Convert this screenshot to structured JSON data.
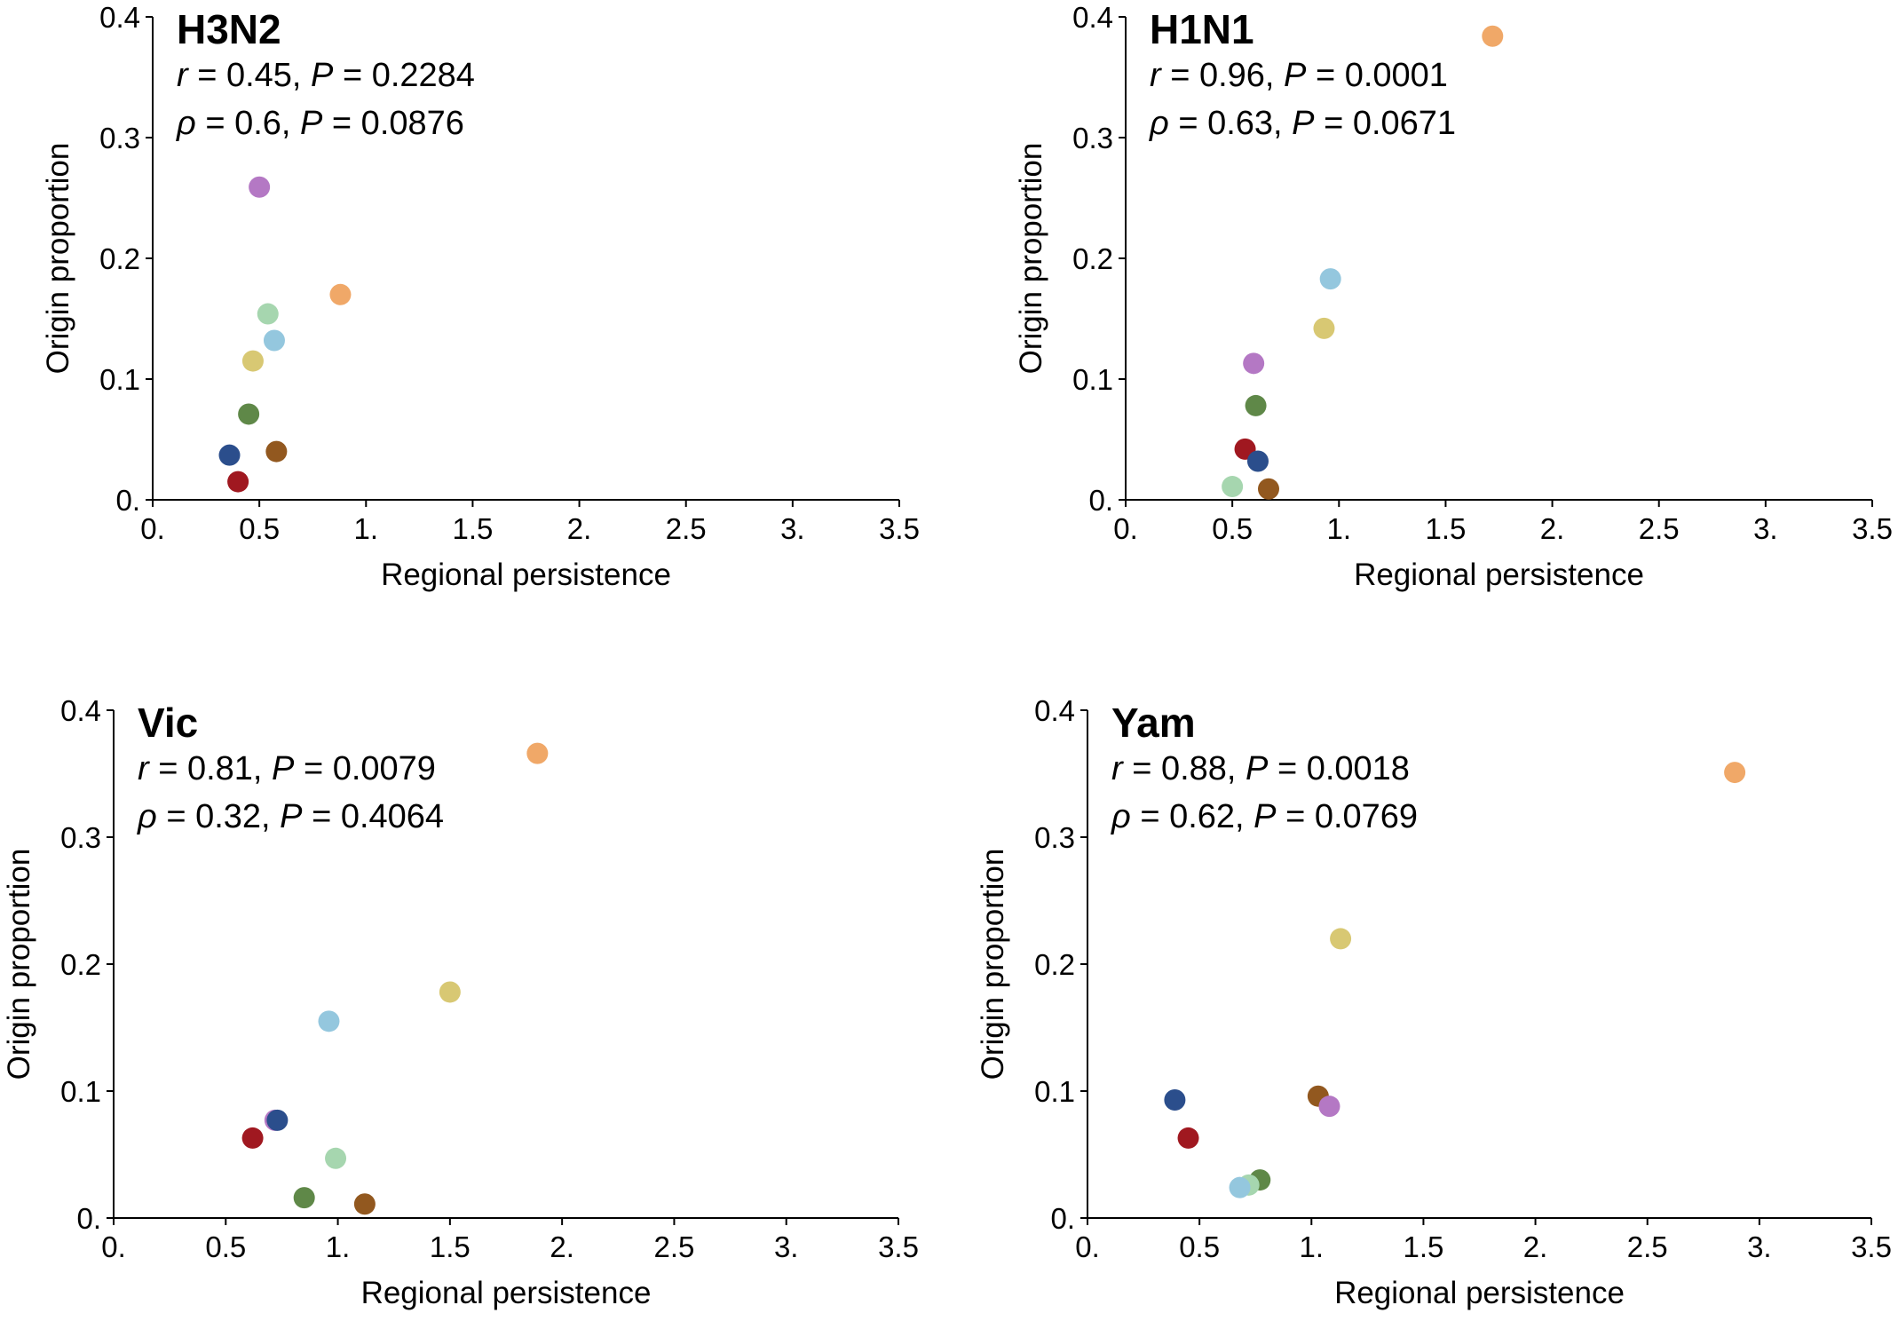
{
  "colors": {
    "orange": "#F0A868",
    "lightblue": "#94C7DE",
    "yellow": "#D8C873",
    "purple": "#B478C4",
    "darkgreen": "#5F8848",
    "darkblue": "#2B4E8C",
    "darkred": "#A01820",
    "brown": "#92581F",
    "lightgreen": "#A6D6AF"
  },
  "chart_data": [
    {
      "type": "scatter",
      "title": "H3N2",
      "stat_lines": [
        {
          "sym": "r",
          "eq": " = 0.45, ",
          "p": "P",
          "val": " = 0.2284"
        },
        {
          "sym": "ρ",
          "eq": " = 0.6, ",
          "p": "P",
          "val": " = 0.0876"
        }
      ],
      "xlabel": "Regional persistence",
      "ylabel": "Origin proportion",
      "xlim": [
        0,
        3.5
      ],
      "ylim": [
        0,
        0.4
      ],
      "x_ticks": [
        "0.",
        "0.5",
        "1.",
        "1.5",
        "2.",
        "2.5",
        "3.",
        "3.5"
      ],
      "y_ticks": [
        "0.",
        "0.1",
        "0.2",
        "0.3",
        "0.4"
      ],
      "points": [
        {
          "x": 0.5,
          "y": 0.259,
          "color": "purple"
        },
        {
          "x": 0.88,
          "y": 0.17,
          "color": "orange"
        },
        {
          "x": 0.54,
          "y": 0.154,
          "color": "lightgreen"
        },
        {
          "x": 0.57,
          "y": 0.132,
          "color": "lightblue"
        },
        {
          "x": 0.47,
          "y": 0.115,
          "color": "yellow"
        },
        {
          "x": 0.45,
          "y": 0.071,
          "color": "darkgreen"
        },
        {
          "x": 0.58,
          "y": 0.04,
          "color": "brown"
        },
        {
          "x": 0.36,
          "y": 0.037,
          "color": "darkblue"
        },
        {
          "x": 0.4,
          "y": 0.015,
          "color": "darkred"
        }
      ]
    },
    {
      "type": "scatter",
      "title": "H1N1",
      "stat_lines": [
        {
          "sym": "r",
          "eq": " = 0.96, ",
          "p": "P",
          "val": " = 0.0001"
        },
        {
          "sym": "ρ",
          "eq": " = 0.63, ",
          "p": "P",
          "val": " = 0.0671"
        }
      ],
      "xlabel": "Regional persistence",
      "ylabel": "Origin proportion",
      "xlim": [
        0,
        3.5
      ],
      "ylim": [
        0,
        0.4
      ],
      "x_ticks": [
        "0.",
        "0.5",
        "1.",
        "1.5",
        "2.",
        "2.5",
        "3.",
        "3.5"
      ],
      "y_ticks": [
        "0.",
        "0.1",
        "0.2",
        "0.3",
        "0.4"
      ],
      "points": [
        {
          "x": 1.72,
          "y": 0.384,
          "color": "orange"
        },
        {
          "x": 0.96,
          "y": 0.183,
          "color": "lightblue"
        },
        {
          "x": 0.93,
          "y": 0.142,
          "color": "yellow"
        },
        {
          "x": 0.6,
          "y": 0.113,
          "color": "purple"
        },
        {
          "x": 0.61,
          "y": 0.078,
          "color": "darkgreen"
        },
        {
          "x": 0.56,
          "y": 0.042,
          "color": "darkred"
        },
        {
          "x": 0.62,
          "y": 0.032,
          "color": "darkblue"
        },
        {
          "x": 0.67,
          "y": 0.009,
          "color": "brown"
        },
        {
          "x": 0.5,
          "y": 0.011,
          "color": "lightgreen"
        }
      ]
    },
    {
      "type": "scatter",
      "title": "Vic",
      "stat_lines": [
        {
          "sym": "r",
          "eq": " = 0.81, ",
          "p": "P",
          "val": " = 0.0079"
        },
        {
          "sym": "ρ",
          "eq": " = 0.32, ",
          "p": "P",
          "val": " = 0.4064"
        }
      ],
      "xlabel": "Regional persistence",
      "ylabel": "Origin proportion",
      "xlim": [
        0,
        3.5
      ],
      "ylim": [
        0,
        0.4
      ],
      "x_ticks": [
        "0.",
        "0.5",
        "1.",
        "1.5",
        "2.",
        "2.5",
        "3.",
        "3.5"
      ],
      "y_ticks": [
        "0.",
        "0.1",
        "0.2",
        "0.3",
        "0.4"
      ],
      "points": [
        {
          "x": 1.89,
          "y": 0.366,
          "color": "orange"
        },
        {
          "x": 1.5,
          "y": 0.178,
          "color": "yellow"
        },
        {
          "x": 0.96,
          "y": 0.155,
          "color": "lightblue"
        },
        {
          "x": 0.72,
          "y": 0.077,
          "color": "purple"
        },
        {
          "x": 0.73,
          "y": 0.077,
          "color": "darkblue"
        },
        {
          "x": 0.62,
          "y": 0.063,
          "color": "darkred"
        },
        {
          "x": 0.99,
          "y": 0.047,
          "color": "lightgreen"
        },
        {
          "x": 0.85,
          "y": 0.016,
          "color": "darkgreen"
        },
        {
          "x": 1.12,
          "y": 0.011,
          "color": "brown"
        }
      ]
    },
    {
      "type": "scatter",
      "title": "Yam",
      "stat_lines": [
        {
          "sym": "r",
          "eq": " = 0.88, ",
          "p": "P",
          "val": " = 0.0018"
        },
        {
          "sym": "ρ",
          "eq": " = 0.62, ",
          "p": "P",
          "val": " = 0.0769"
        }
      ],
      "xlabel": "Regional persistence",
      "ylabel": "Origin proportion",
      "xlim": [
        0,
        3.5
      ],
      "ylim": [
        0,
        0.4
      ],
      "x_ticks": [
        "0.",
        "0.5",
        "1.",
        "1.5",
        "2.",
        "2.5",
        "3.",
        "3.5"
      ],
      "y_ticks": [
        "0.",
        "0.1",
        "0.2",
        "0.3",
        "0.4"
      ],
      "points": [
        {
          "x": 2.89,
          "y": 0.351,
          "color": "orange"
        },
        {
          "x": 1.13,
          "y": 0.22,
          "color": "yellow"
        },
        {
          "x": 0.39,
          "y": 0.093,
          "color": "darkblue"
        },
        {
          "x": 1.03,
          "y": 0.096,
          "color": "brown"
        },
        {
          "x": 1.08,
          "y": 0.088,
          "color": "purple"
        },
        {
          "x": 0.45,
          "y": 0.063,
          "color": "darkred"
        },
        {
          "x": 0.77,
          "y": 0.03,
          "color": "darkgreen"
        },
        {
          "x": 0.72,
          "y": 0.026,
          "color": "lightgreen"
        },
        {
          "x": 0.68,
          "y": 0.024,
          "color": "lightblue"
        }
      ]
    }
  ]
}
